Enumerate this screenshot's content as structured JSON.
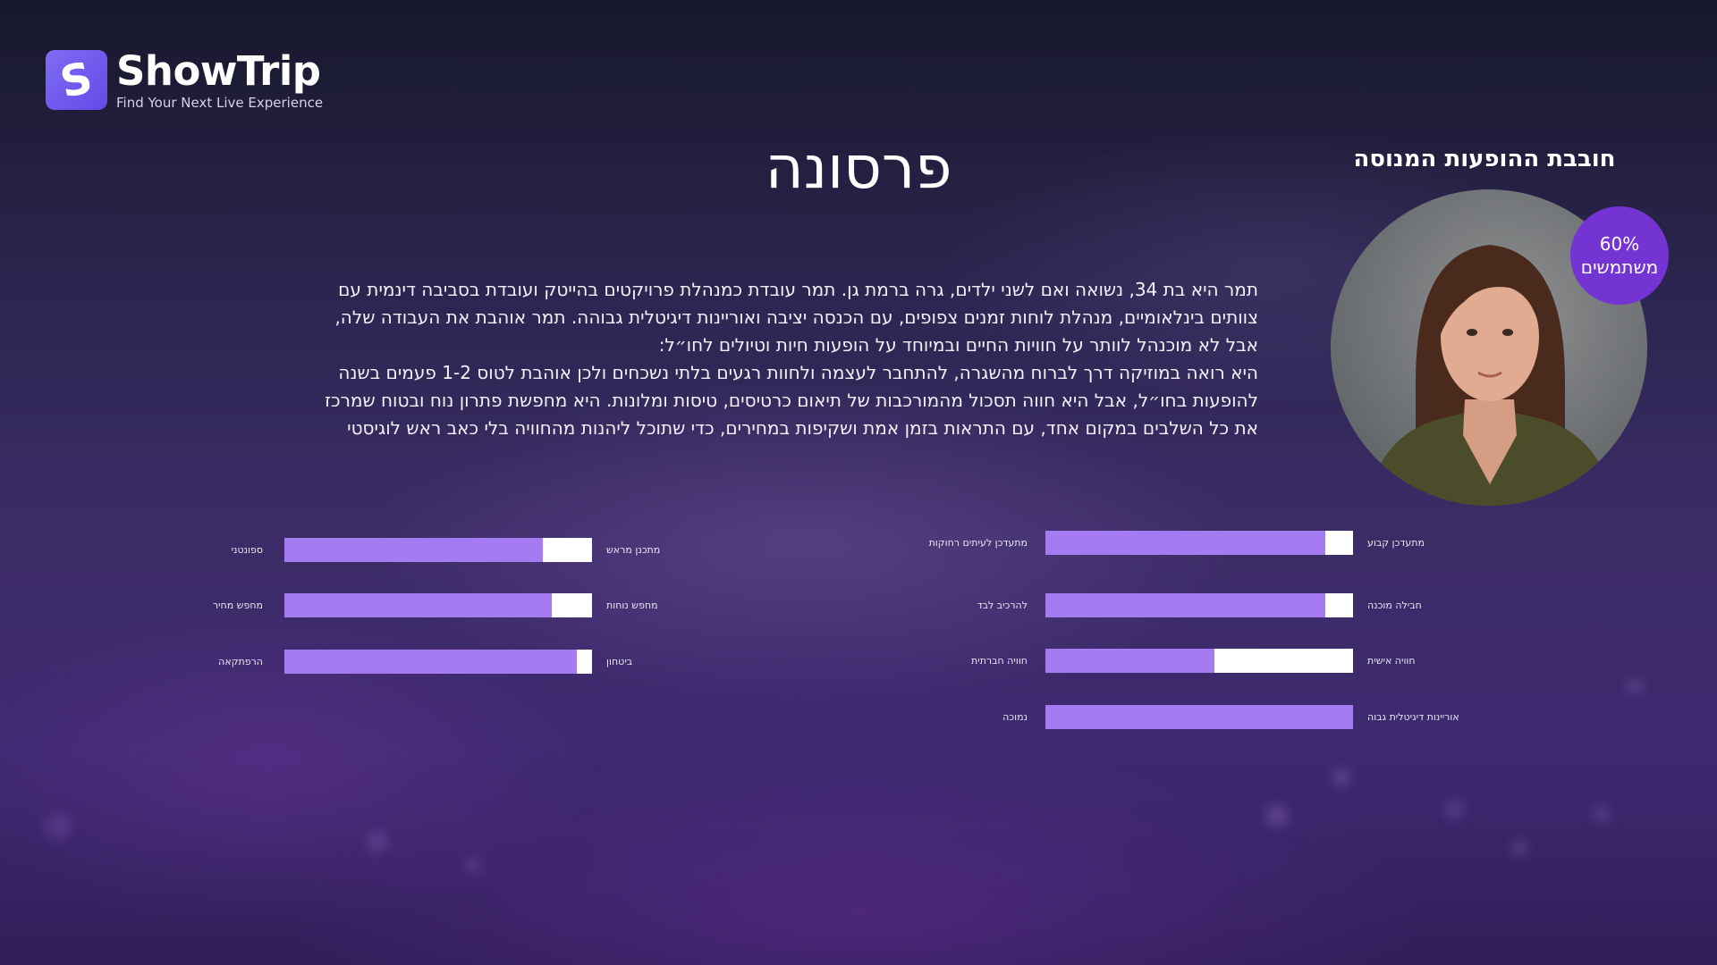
{
  "brand": {
    "name": "ShowTrip",
    "tagline": "Find Your Next Live Experience",
    "logo_glyph": "S",
    "accent_color": "#6d53ea"
  },
  "page": {
    "title": "פרסונה"
  },
  "persona": {
    "title": "חובבת ההופעות המנוסה",
    "stat_value": "60%",
    "stat_label": "משתמשים",
    "badge_color": "#7434d4",
    "description_lines": [
      "תמר היא בת 34, נשואה ואם לשני ילדים, גרה ברמת גן. תמר עובדת כמנהלת פרויקטים בהייטק ועובדת בסביבה דינמית עם",
      "צוותים בינלאומיים, מנהלת לוחות זמנים צפופים, עם הכנסה יציבה ואוריינות דיגיטלית גבוהה. תמר אוהבת את העבודה שלה,",
      "אבל לא מוכנהל לוותר על חוויות החיים ובמיוחד על הופעות חיות וטיולים לחו״ל:",
      "היא רואה במוזיקה דרך לברוח מהשגרה, להתחבר לעצמה ולחוות רגעים בלתי נשכחים ולכן אוהבת לטוס 1-2 פעמים בשנה",
      "להופעות בחו״ל, אבל היא חווה תסכול מהמורכבות של תיאום כרטיסים, טיסות ומלונות. היא מחפשת פתרון נוח ובטוח שמרכז",
      "את כל השלבים במקום אחד, עם התראות בזמן אמת ושקיפות במחירים, כדי שתוכל ליהנות מהחוויה בלי כאב ראש לוגיסטי"
    ]
  },
  "scales": {
    "fill_color": "#a47bf0",
    "track_color": "#ffffff",
    "left_group": [
      {
        "right_label": "מתכנן מראש",
        "left_label": "ספונטני",
        "fill_fraction": 0.84
      },
      {
        "right_label": "מחפש נוחות",
        "left_label": "מחפש מחיר",
        "fill_fraction": 0.87
      },
      {
        "right_label": "ביטחון",
        "left_label": "הרפתקאה",
        "fill_fraction": 0.95
      }
    ],
    "right_group": [
      {
        "right_label": "מתעדכן קבוע",
        "left_label": "מתעדכן לעיתים רחוקות",
        "fill_fraction": 0.91
      },
      {
        "right_label": "חבילה מוכנה",
        "left_label": "להרכיב לבד",
        "fill_fraction": 0.91
      },
      {
        "right_label": "חוויה אישית",
        "left_label": "חוויה חברתית",
        "fill_fraction": 0.55
      },
      {
        "right_label": "אוריינות דיגיטלית גבוה",
        "left_label": "נמוכה",
        "fill_fraction": 1.0
      }
    ]
  }
}
